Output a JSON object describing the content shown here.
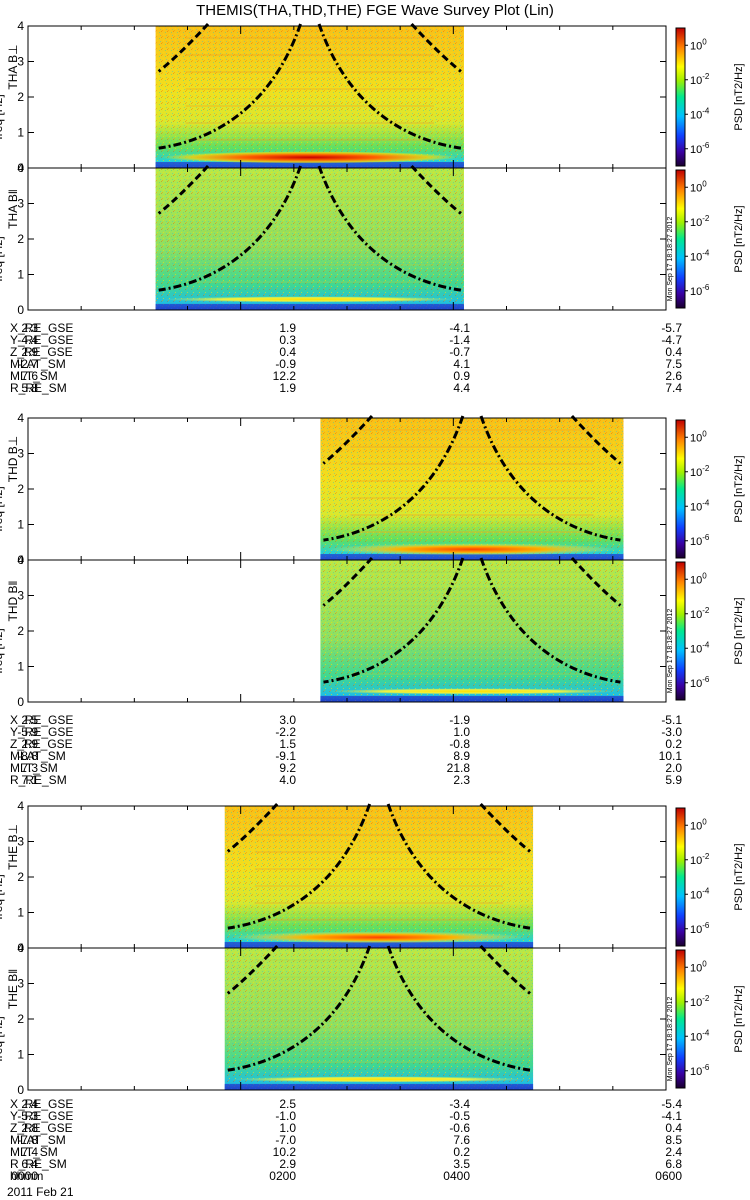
{
  "title": "THEMIS(THA,THD,THE) FGE Wave Survey Plot (Lin)",
  "colors": {
    "background": "#ffffff",
    "ink": "#000000",
    "colormap": [
      "#2a0040",
      "#2020e0",
      "#00c8ff",
      "#00ff90",
      "#ffff00",
      "#ff8000",
      "#d00000"
    ]
  },
  "chart_data": {
    "type": "heatmap",
    "time_range": [
      "0000",
      "0600"
    ],
    "time_axis_hours": [
      0,
      6
    ],
    "freq_label": "freq [Hz]",
    "freq_range": [
      0,
      4
    ],
    "freq_ticks": [
      "0",
      "1",
      "2",
      "3",
      "4"
    ],
    "colorbar_label": "PSD [nT2/Hz]",
    "colorbar_ticks_exp": [
      "0",
      "-2",
      "-4",
      "-6"
    ],
    "colorbar_range_log10": [
      -7,
      1
    ],
    "stamp": "Mon Sep 17 18:18:27 2012",
    "panels": [
      {
        "name": "THA B⊥",
        "probe": "THA",
        "component": "perp",
        "data_start_hour": 1.2,
        "data_end_hour": 4.1,
        "peak_freq_hz": 0.3
      },
      {
        "name": "THA B‖",
        "probe": "THA",
        "component": "par",
        "data_start_hour": 1.2,
        "data_end_hour": 4.1,
        "peak_freq_hz": 0.3
      },
      {
        "name": "THD B⊥",
        "probe": "THD",
        "component": "perp",
        "data_start_hour": 2.75,
        "data_end_hour": 5.6,
        "peak_freq_hz": 0.3
      },
      {
        "name": "THD B‖",
        "probe": "THD",
        "component": "par",
        "data_start_hour": 2.75,
        "data_end_hour": 5.6,
        "peak_freq_hz": 0.3
      },
      {
        "name": "THE B⊥",
        "probe": "THE",
        "component": "perp",
        "data_start_hour": 1.85,
        "data_end_hour": 4.75,
        "peak_freq_hz": 0.3
      },
      {
        "name": "THE B‖",
        "probe": "THE",
        "component": "par",
        "data_start_hour": 1.85,
        "data_end_hour": 4.75,
        "peak_freq_hz": 0.3
      }
    ],
    "gyro_curves_note": "dash-dot and dashed lines show ion cyclotron frequency bounds"
  },
  "ephemeris_labels": [
    "X_RE_GSE",
    "Y_RE_GSE",
    "Z_RE_GSE",
    "MLAT_SM",
    "MLT_SM",
    "R_RE_SM"
  ],
  "ephemeris": [
    {
      "probe": "THA",
      "rows": [
        [
          "2.3",
          "1.9",
          "-4.1",
          "-5.7"
        ],
        [
          "-4.4",
          "0.3",
          "-1.4",
          "-4.7"
        ],
        [
          "2.9",
          "0.4",
          "-0.7",
          "0.4"
        ],
        [
          "-2.7",
          "-0.9",
          "4.1",
          "7.5"
        ],
        [
          "7.6",
          "12.2",
          "0.9",
          "2.6"
        ],
        [
          "5.8",
          "1.9",
          "4.4",
          "7.4"
        ]
      ]
    },
    {
      "probe": "THD",
      "rows": [
        [
          "2.5",
          "3.0",
          "-1.9",
          "-5.1"
        ],
        [
          "-5.9",
          "-2.2",
          "1.0",
          "-3.0"
        ],
        [
          "2.9",
          "1.5",
          "-0.8",
          "0.2"
        ],
        [
          "-8.8",
          "-9.1",
          "8.9",
          "10.1"
        ],
        [
          "7.3",
          "9.2",
          "21.8",
          "2.0"
        ],
        [
          "7.1",
          "4.0",
          "2.3",
          "5.9"
        ]
      ]
    },
    {
      "probe": "THE",
      "rows": [
        [
          "2.4",
          "2.5",
          "-3.4",
          "-5.4"
        ],
        [
          "-5.3",
          "-1.0",
          "-0.5",
          "-4.1"
        ],
        [
          "2.8",
          "1.0",
          "-0.6",
          "0.4"
        ],
        [
          "-7.8",
          "-7.0",
          "7.6",
          "8.5"
        ],
        [
          "7.4",
          "10.2",
          "0.2",
          "2.4"
        ],
        [
          "6.4",
          "2.9",
          "3.5",
          "6.8"
        ]
      ]
    }
  ],
  "time_row": {
    "label": "hhmm",
    "values": [
      "0000",
      "0200",
      "0400",
      "0600"
    ]
  },
  "date": "2011 Feb 21"
}
